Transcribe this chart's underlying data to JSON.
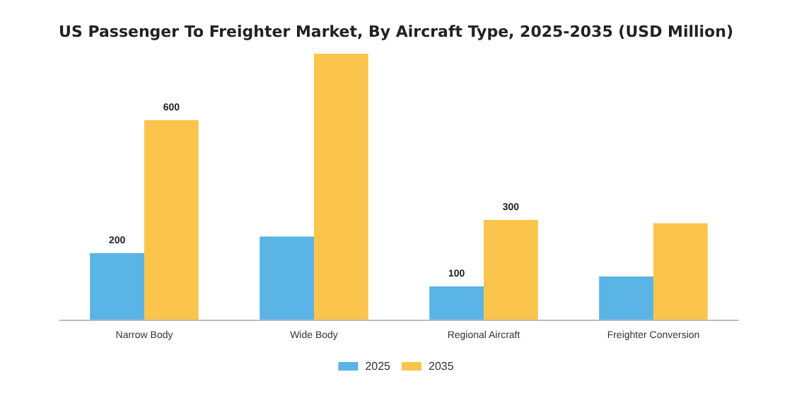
{
  "chart_data": {
    "type": "bar",
    "title": "US Passenger To Freighter Market, By Aircraft Type, 2025-2035 (USD Million)",
    "categories": [
      "Narrow Body",
      "Wide Body",
      "Regional Aircraft",
      "Freighter Conversion"
    ],
    "series": [
      {
        "name": "2025",
        "color": "#5ab4e5",
        "values": [
          200,
          250,
          100,
          130
        ],
        "value_labels": [
          "200",
          null,
          "100",
          null
        ]
      },
      {
        "name": "2035",
        "color": "#fbc44c",
        "values": [
          600,
          800,
          300,
          290
        ],
        "value_labels": [
          "600",
          null,
          "300",
          null
        ]
      }
    ],
    "legend": "bottom"
  }
}
